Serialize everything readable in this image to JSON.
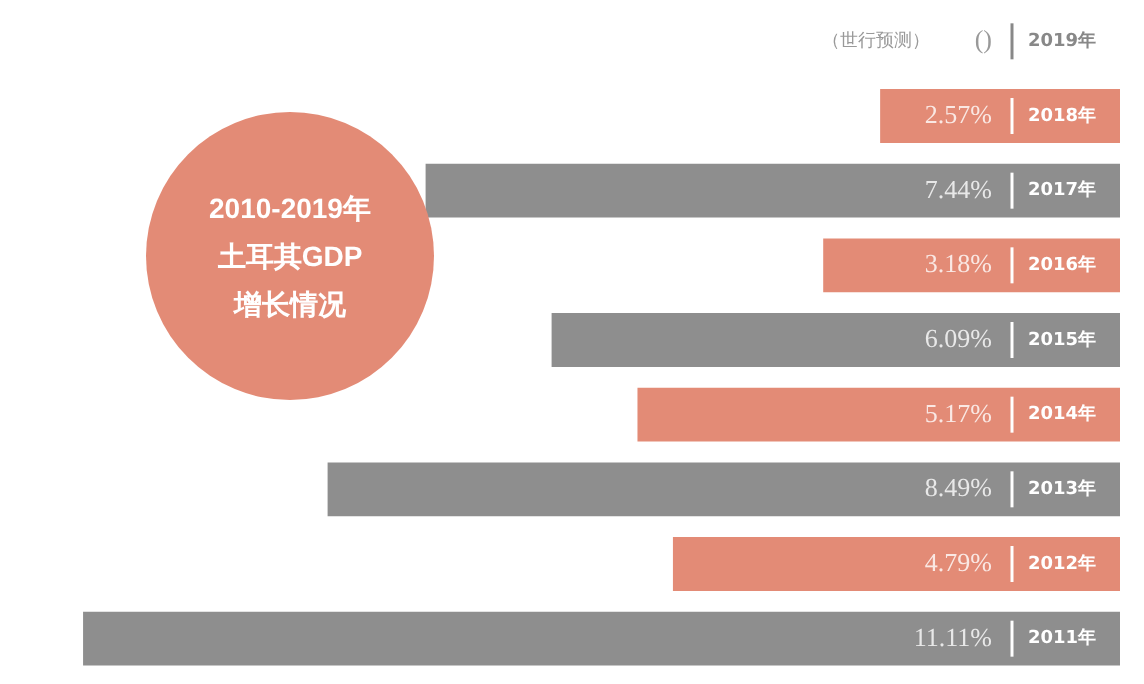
{
  "chart_data": {
    "type": "bar",
    "orientation": "horizontal",
    "title": "2010-2019年土耳其GDP增长情况",
    "categories": [
      "2019年",
      "2018年",
      "2017年",
      "2016年",
      "2015年",
      "2014年",
      "2013年",
      "2012年",
      "2011年"
    ],
    "values": [
      null,
      2.57,
      7.44,
      3.18,
      6.09,
      5.17,
      8.49,
      4.79,
      11.11
    ],
    "value_labels": [
      "()",
      "2.57%",
      "7.44%",
      "3.18%",
      "6.09%",
      "5.17%",
      "8.49%",
      "4.79%",
      "11.11%"
    ],
    "colors": [
      null,
      "#e38b76",
      "#8e8e8e",
      "#e38b76",
      "#8e8e8e",
      "#e38b76",
      "#8e8e8e",
      "#e38b76",
      "#8e8e8e"
    ],
    "annotations": [
      "（世行预测）"
    ],
    "legend": false
  }
}
